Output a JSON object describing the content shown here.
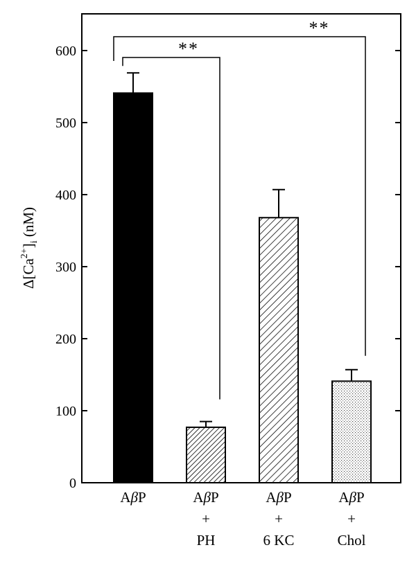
{
  "chart_data": {
    "type": "bar",
    "categories": [
      [
        "AβP"
      ],
      [
        "AβP",
        "+",
        "PH"
      ],
      [
        "AβP",
        "+",
        "6 KC"
      ],
      [
        "AβP",
        "+",
        "Chol"
      ]
    ],
    "values": [
      541,
      77,
      368,
      141
    ],
    "errors": [
      28,
      8,
      39,
      16
    ],
    "ylabel": {
      "main": "Δ[Ca",
      "sup": "2+",
      "bracket": "]",
      "sub": "i",
      "unit": " (nM)"
    },
    "ylim": [
      0,
      650
    ],
    "yticks": [
      0,
      100,
      200,
      300,
      400,
      500,
      600
    ],
    "fills": [
      "solid-black",
      "dense-diagonal-hatch",
      "diagonal-hatch",
      "dotted-grid"
    ],
    "significance": [
      {
        "from": 0,
        "to": 1,
        "label": "**"
      },
      {
        "from": 0,
        "to": 3,
        "label": "**"
      }
    ]
  }
}
